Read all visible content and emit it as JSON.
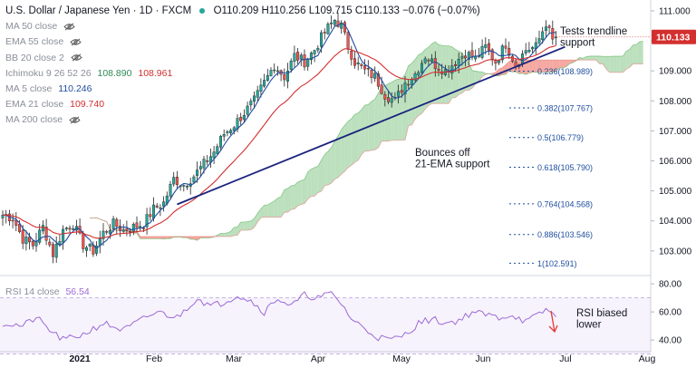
{
  "header": {
    "symbol_title": "U.S. Dollar / Japanese Yen · 1D · FXCM",
    "open": "O110.209",
    "high": "H110.256",
    "low": "L109.715",
    "close": "C110.133",
    "change": "−0.076 (−0.07%)"
  },
  "indicators": [
    {
      "label": "MA 50 close",
      "hidden": true
    },
    {
      "label": "EMA 55 close",
      "hidden": true
    },
    {
      "label": "BB 20 close 2",
      "hidden": true
    },
    {
      "label": "Ichimoku 9 26 52 26",
      "values": [
        "108.890",
        "108.961"
      ],
      "colors": [
        "#2e8b57",
        "#d32f2f"
      ]
    },
    {
      "label": "MA 5 close",
      "values": [
        "110.246"
      ],
      "colors": [
        "#1f4e9e"
      ]
    },
    {
      "label": "EMA 21 close",
      "values": [
        "109.740"
      ],
      "colors": [
        "#d32f2f"
      ]
    },
    {
      "label": "MA 200 close",
      "hidden": true
    }
  ],
  "rsi": {
    "label": "RSI 14 close",
    "value": "56.54"
  },
  "last_price_badge": "110.133",
  "annotations": {
    "trendline": "Tests trendline support",
    "ema": "Bounces off 21-EMA support",
    "rsi": "RSI biased lower"
  },
  "colors": {
    "up": "#26a69a",
    "down": "#ef5350",
    "ma5": "#1f4e9e",
    "ema21": "#d32f2f",
    "trendline": "#1a237e",
    "cloud_bull": "#a5d6a7",
    "cloud_bear": "#f28b82",
    "rsi_line": "#9c6ad6",
    "fib": "#1f4e9e",
    "badge": "#d32f2f"
  },
  "chart_data": {
    "type": "candlestick",
    "title": "U.S. Dollar / Japanese Yen · 1D · FXCM",
    "price_axis": {
      "range": [
        102.3,
        111.3
      ],
      "ticks": [
        "111.000",
        "110.000",
        "109.000",
        "108.000",
        "107.000",
        "106.000",
        "105.000",
        "104.000",
        "103.000"
      ]
    },
    "time_axis": {
      "ticks": [
        "2021",
        "Feb",
        "Mar",
        "Apr",
        "May",
        "Jun",
        "Jul",
        "Aug"
      ]
    },
    "fib_levels": [
      {
        "label": "0.236(108.989)",
        "value": 108.989
      },
      {
        "label": "0.382(107.767)",
        "value": 107.767
      },
      {
        "label": "0.5(106.779)",
        "value": 106.779
      },
      {
        "label": "0.618(105.790)",
        "value": 105.79
      },
      {
        "label": "0.764(104.568)",
        "value": 104.568
      },
      {
        "label": "0.886(103.546)",
        "value": 103.546
      },
      {
        "label": "1(102.591)",
        "value": 102.591
      }
    ],
    "close_anchors": [
      [
        0,
        104.2
      ],
      [
        3,
        104.1
      ],
      [
        6,
        103.4
      ],
      [
        9,
        103.2
      ],
      [
        12,
        103.8
      ],
      [
        15,
        102.9
      ],
      [
        18,
        103.7
      ],
      [
        21,
        103.9
      ],
      [
        24,
        103.2
      ],
      [
        27,
        103.0
      ],
      [
        30,
        103.6
      ],
      [
        33,
        103.9
      ],
      [
        36,
        103.7
      ],
      [
        39,
        103.8
      ],
      [
        42,
        103.9
      ],
      [
        45,
        104.4
      ],
      [
        48,
        104.6
      ],
      [
        51,
        105.4
      ],
      [
        54,
        105.2
      ],
      [
        57,
        105.5
      ],
      [
        60,
        105.9
      ],
      [
        63,
        106.3
      ],
      [
        66,
        106.9
      ],
      [
        69,
        107.2
      ],
      [
        72,
        107.6
      ],
      [
        75,
        108.0
      ],
      [
        78,
        108.6
      ],
      [
        81,
        109.2
      ],
      [
        84,
        108.8
      ],
      [
        87,
        109.5
      ],
      [
        90,
        109.3
      ],
      [
        93,
        109.7
      ],
      [
        96,
        110.3
      ],
      [
        99,
        110.7
      ],
      [
        101,
        110.5
      ],
      [
        103,
        109.8
      ],
      [
        105,
        109.3
      ],
      [
        108,
        109.0
      ],
      [
        111,
        108.8
      ],
      [
        114,
        108.2
      ],
      [
        117,
        108.0
      ],
      [
        120,
        108.6
      ],
      [
        123,
        108.9
      ],
      [
        126,
        109.5
      ],
      [
        129,
        109.2
      ],
      [
        132,
        109.0
      ],
      [
        135,
        109.3
      ],
      [
        138,
        109.6
      ],
      [
        141,
        109.4
      ],
      [
        144,
        109.8
      ],
      [
        147,
        109.3
      ],
      [
        150,
        109.9
      ],
      [
        153,
        109.2
      ],
      [
        156,
        109.7
      ],
      [
        159,
        109.8
      ],
      [
        162,
        110.6
      ],
      [
        164,
        110.0
      ],
      [
        165,
        110.13
      ]
    ],
    "ma5_last": 110.246,
    "ema21_last": 109.74,
    "ichimoku_last": [
      108.89,
      108.961
    ],
    "rsi": {
      "range": [
        33,
        82
      ],
      "ticks": [
        "80.00",
        "60.00",
        "40.00"
      ],
      "overbought": 70,
      "oversold": 30,
      "anchors": [
        [
          0,
          52
        ],
        [
          6,
          50
        ],
        [
          10,
          56
        ],
        [
          14,
          47
        ],
        [
          18,
          40
        ],
        [
          24,
          44
        ],
        [
          30,
          52
        ],
        [
          36,
          47
        ],
        [
          42,
          55
        ],
        [
          46,
          60
        ],
        [
          52,
          56
        ],
        [
          58,
          70
        ],
        [
          62,
          64
        ],
        [
          66,
          67
        ],
        [
          70,
          72
        ],
        [
          74,
          68
        ],
        [
          78,
          60
        ],
        [
          82,
          70
        ],
        [
          86,
          64
        ],
        [
          90,
          72
        ],
        [
          94,
          70
        ],
        [
          98,
          73
        ],
        [
          101,
          66
        ],
        [
          104,
          55
        ],
        [
          108,
          48
        ],
        [
          112,
          42
        ],
        [
          116,
          40
        ],
        [
          120,
          44
        ],
        [
          124,
          52
        ],
        [
          128,
          55
        ],
        [
          132,
          52
        ],
        [
          136,
          54
        ],
        [
          140,
          60
        ],
        [
          144,
          58
        ],
        [
          148,
          56
        ],
        [
          152,
          58
        ],
        [
          156,
          53
        ],
        [
          160,
          58
        ],
        [
          162,
          62
        ],
        [
          165,
          56.5
        ]
      ]
    }
  }
}
